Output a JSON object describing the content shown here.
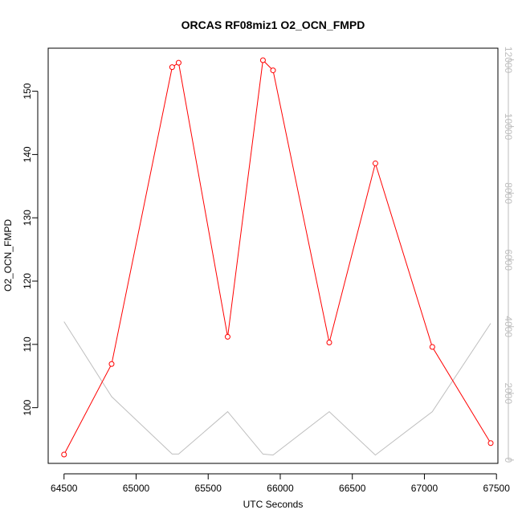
{
  "chart_data": {
    "type": "line",
    "title": "ORCAS RF08miz1 O2_OCN_FMPD",
    "xlabel": "UTC Seconds",
    "ylabel": "O2_OCN_FMPD",
    "xlim": [
      64390,
      67510
    ],
    "ylim": [
      91.2,
      156.8
    ],
    "y2lim": [
      -100,
      12350
    ],
    "xticks": [
      64500,
      65000,
      65500,
      66000,
      66500,
      67000,
      67500
    ],
    "yticks": [
      100,
      110,
      120,
      130,
      140,
      150
    ],
    "y2ticks": [
      0,
      2000,
      4000,
      6000,
      8000,
      10000,
      12000
    ],
    "grid": false,
    "series": [
      {
        "color": "#ff0000",
        "axis": "left",
        "markers": true,
        "x": [
          64500,
          64830,
          65250,
          65295,
          65635,
          65880,
          65950,
          66340,
          66660,
          67055,
          67460
        ],
        "y": [
          92.6,
          106.9,
          153.8,
          154.5,
          111.2,
          154.9,
          153.3,
          110.3,
          138.6,
          109.6,
          94.4
        ]
      },
      {
        "color": "#bebebe",
        "axis": "right",
        "markers": false,
        "x": [
          64500,
          64830,
          65250,
          65295,
          65635,
          65880,
          65950,
          66340,
          66660,
          67055,
          67460
        ],
        "y": [
          4150,
          1900,
          180,
          180,
          1450,
          180,
          150,
          1450,
          150,
          1450,
          4100
        ]
      }
    ]
  }
}
